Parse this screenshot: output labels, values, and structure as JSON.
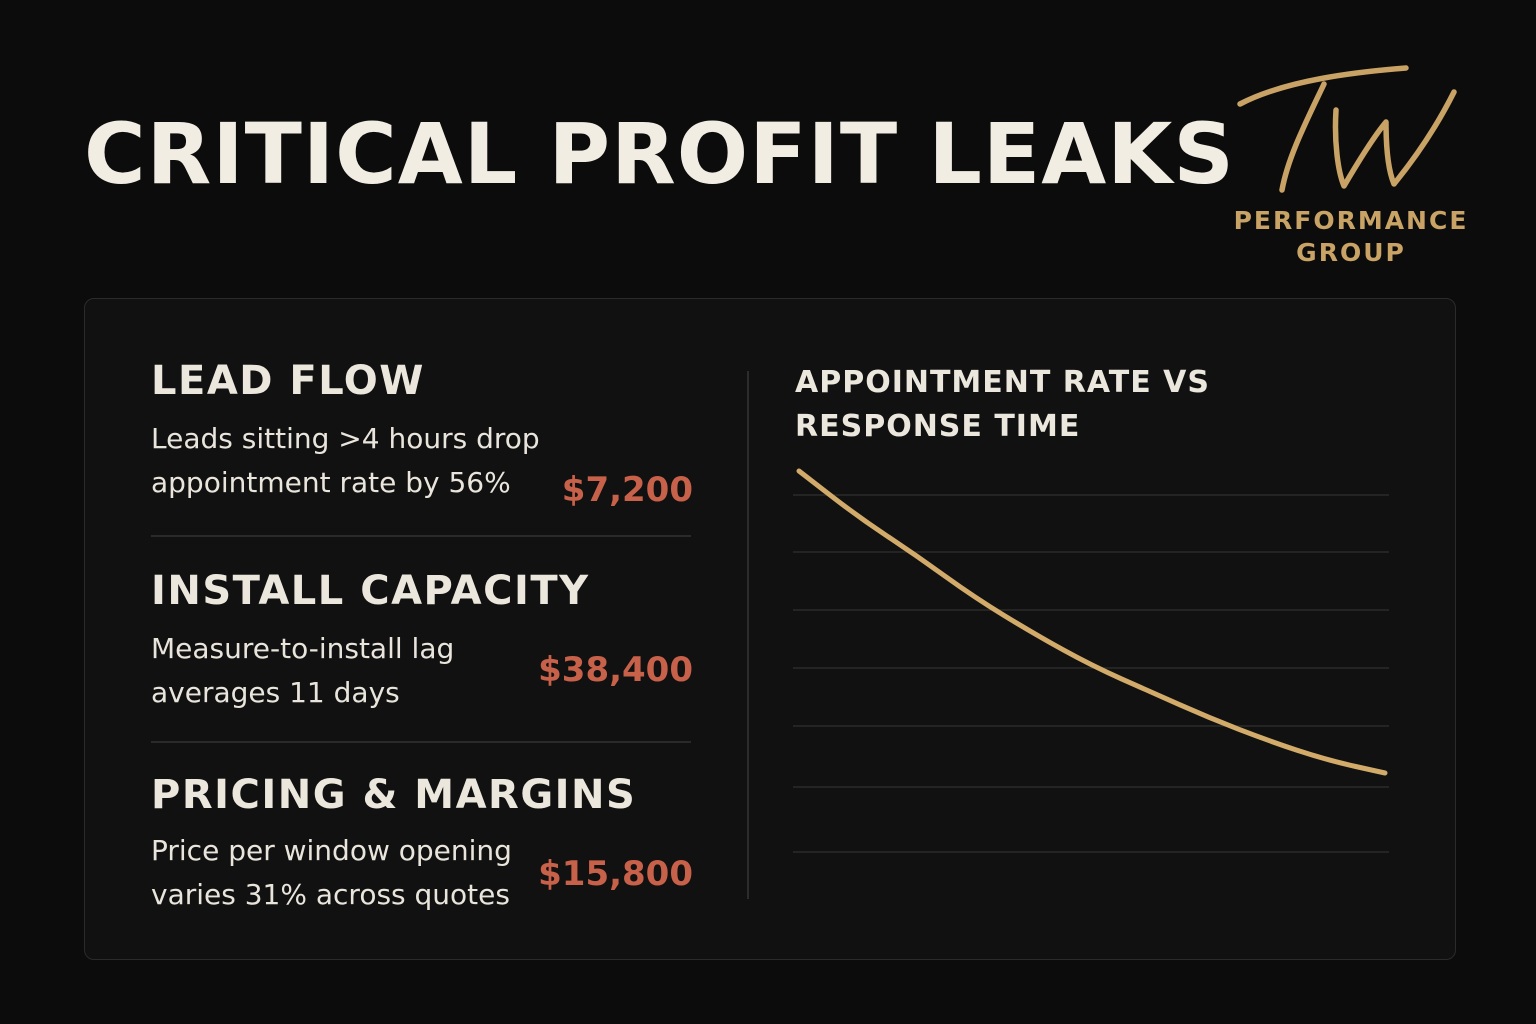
{
  "header": {
    "title": "CRITICAL PROFIT LEAKS"
  },
  "logo": {
    "monogram": "TW",
    "line1": "PERFORMANCE",
    "line2": "GROUP",
    "color": "#c9a265"
  },
  "leaks": [
    {
      "title": "LEAD FLOW",
      "description": "Leads sitting >4 hours drop appointment rate by 56%",
      "amount": "$7,200"
    },
    {
      "title": "INSTALL CAPACITY",
      "description": "Measure-to-install lag averages 11 days",
      "amount": "$38,400"
    },
    {
      "title": "PRICING & MARGINS",
      "description": "Price per window opening varies 31% across quotes",
      "amount": "$15,800"
    }
  ],
  "colors": {
    "background": "#0c0c0c",
    "card": "#111111",
    "amount": "#c8614a",
    "line": "#d2aa6a",
    "grid": "#2a2a2a"
  },
  "chart_data": {
    "type": "line",
    "title": "APPOINTMENT RATE VS RESPONSE TIME",
    "xlabel": "",
    "ylabel": "",
    "grid": true,
    "axis_ticks_labeled": false,
    "series": [
      {
        "x": [
          0,
          0.1,
          0.2,
          0.3,
          0.4,
          0.5,
          0.6,
          0.7,
          0.8,
          0.9,
          1.0
        ],
        "values": [
          1.0,
          0.86,
          0.74,
          0.61,
          0.5,
          0.4,
          0.32,
          0.24,
          0.17,
          0.11,
          0.07
        ]
      }
    ]
  }
}
